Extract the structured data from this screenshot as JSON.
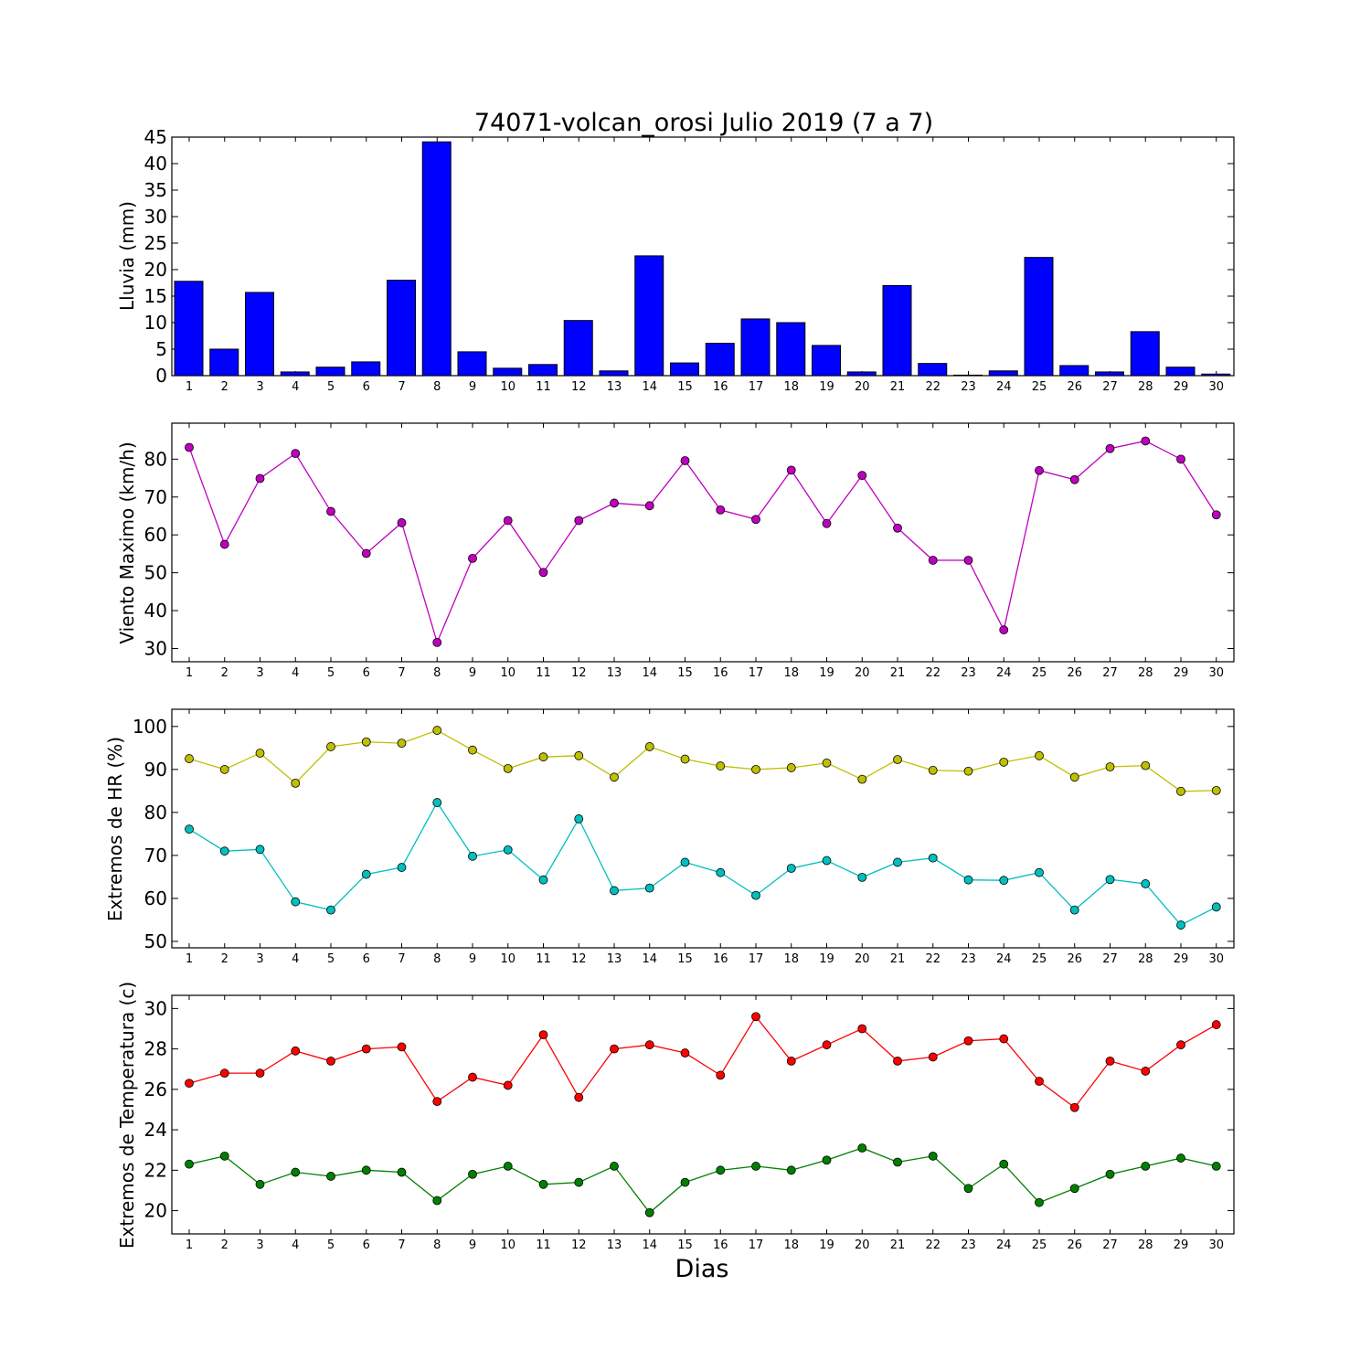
{
  "title": "74071-volcan_orosi Julio 2019  (7 a 7)",
  "xlabel": "Dias",
  "chart_data": [
    {
      "type": "bar",
      "ylabel": "Lluvia (mm)",
      "ylim": [
        0,
        45
      ],
      "yticks": [
        0,
        5,
        10,
        15,
        20,
        25,
        30,
        35,
        40,
        45
      ],
      "categories": [
        "1",
        "2",
        "3",
        "4",
        "5",
        "6",
        "7",
        "8",
        "9",
        "10",
        "11",
        "12",
        "13",
        "14",
        "15",
        "16",
        "17",
        "18",
        "19",
        "20",
        "21",
        "22",
        "23",
        "24",
        "25",
        "26",
        "27",
        "28",
        "29",
        "30"
      ],
      "series": [
        {
          "color": "#0000ff",
          "values": [
            17.8,
            5.0,
            15.7,
            0.7,
            1.6,
            2.6,
            18.0,
            44.1,
            4.5,
            1.4,
            2.1,
            10.4,
            0.9,
            22.6,
            2.4,
            6.1,
            10.7,
            10.0,
            5.7,
            0.7,
            17.0,
            2.3,
            0.1,
            0.9,
            22.3,
            1.9,
            0.7,
            8.3,
            1.6,
            0.3
          ]
        }
      ]
    },
    {
      "type": "line",
      "ylabel": "Viento Maximo (km/h)",
      "ylim": [
        26.5,
        89.5
      ],
      "yticks": [
        30,
        40,
        50,
        60,
        70,
        80
      ],
      "categories": [
        "1",
        "2",
        "3",
        "4",
        "5",
        "6",
        "7",
        "8",
        "9",
        "10",
        "11",
        "12",
        "13",
        "14",
        "15",
        "16",
        "17",
        "18",
        "19",
        "20",
        "21",
        "22",
        "23",
        "24",
        "25",
        "26",
        "27",
        "28",
        "29",
        "30"
      ],
      "series": [
        {
          "color": "#bf00bf",
          "values": [
            83.1,
            57.5,
            74.9,
            81.5,
            66.2,
            55.1,
            63.2,
            31.6,
            53.8,
            63.8,
            50.1,
            63.8,
            68.4,
            67.7,
            79.6,
            66.6,
            64.1,
            77.1,
            63.0,
            75.7,
            61.8,
            53.3,
            53.3,
            34.9,
            77.0,
            74.6,
            82.8,
            84.8,
            80.0,
            65.3
          ]
        }
      ]
    },
    {
      "type": "line",
      "ylabel": "Extremos de HR (%)",
      "ylim": [
        48.5,
        104
      ],
      "yticks": [
        50,
        60,
        70,
        80,
        90,
        100
      ],
      "categories": [
        "1",
        "2",
        "3",
        "4",
        "5",
        "6",
        "7",
        "8",
        "9",
        "10",
        "11",
        "12",
        "13",
        "14",
        "15",
        "16",
        "17",
        "18",
        "19",
        "20",
        "21",
        "22",
        "23",
        "24",
        "25",
        "26",
        "27",
        "28",
        "29",
        "30"
      ],
      "series": [
        {
          "color": "#bfbf00",
          "values": [
            92.5,
            90.0,
            93.8,
            86.8,
            95.3,
            96.4,
            96.1,
            99.1,
            94.5,
            90.2,
            92.9,
            93.2,
            88.2,
            95.3,
            92.4,
            90.8,
            90.0,
            90.4,
            91.5,
            87.7,
            92.3,
            89.8,
            89.6,
            91.7,
            93.2,
            88.2,
            90.6,
            90.9,
            84.9,
            85.1
          ]
        },
        {
          "color": "#00bfbf",
          "values": [
            76.1,
            71.0,
            71.4,
            59.2,
            57.3,
            65.6,
            67.2,
            82.3,
            69.8,
            71.3,
            64.3,
            78.5,
            61.8,
            62.4,
            68.4,
            66.0,
            60.7,
            67.0,
            68.8,
            64.9,
            68.4,
            69.4,
            64.3,
            64.2,
            66.0,
            57.3,
            64.4,
            63.4,
            53.8,
            58.0
          ]
        }
      ]
    },
    {
      "type": "line",
      "ylabel": "Extremos de Temperatura (c)",
      "ylim": [
        18.85,
        30.65
      ],
      "yticks": [
        20,
        22,
        24,
        26,
        28,
        30
      ],
      "categories": [
        "1",
        "2",
        "3",
        "4",
        "5",
        "6",
        "7",
        "8",
        "9",
        "10",
        "11",
        "12",
        "13",
        "14",
        "15",
        "16",
        "17",
        "18",
        "19",
        "20",
        "21",
        "22",
        "23",
        "24",
        "25",
        "26",
        "27",
        "28",
        "29",
        "30"
      ],
      "series": [
        {
          "color": "#ff0000",
          "values": [
            26.3,
            26.8,
            26.8,
            27.9,
            27.4,
            28.0,
            28.1,
            25.4,
            26.6,
            26.2,
            28.7,
            25.6,
            28.0,
            28.2,
            27.8,
            26.7,
            29.6,
            27.4,
            28.2,
            29.0,
            27.4,
            27.6,
            28.4,
            28.5,
            26.4,
            25.1,
            27.4,
            26.9,
            28.2,
            29.2
          ]
        },
        {
          "color": "#008000",
          "values": [
            22.3,
            22.7,
            21.3,
            21.9,
            21.7,
            22.0,
            21.9,
            20.5,
            21.8,
            22.2,
            21.3,
            21.4,
            22.2,
            19.9,
            21.4,
            22.0,
            22.2,
            22.0,
            22.5,
            23.1,
            22.4,
            22.7,
            21.1,
            22.3,
            20.4,
            21.1,
            21.8,
            22.2,
            22.6,
            22.2
          ]
        }
      ]
    }
  ]
}
